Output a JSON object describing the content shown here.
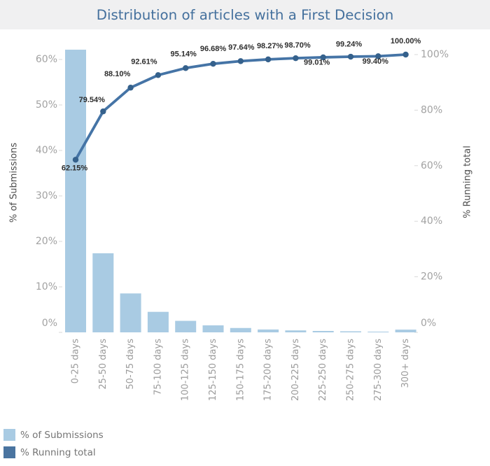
{
  "title": "Distribution of articles with a First Decision",
  "colors": {
    "band": "#f0f0f1",
    "title": "#44709d",
    "bar": "#a9cbe3",
    "line": "#4574a6",
    "marker": "#35618c",
    "legend_dark": "#4a74a0",
    "tick_label": "#a2a2a2",
    "x_label": "#9b9b9b",
    "axis_title": "#4d4d4d",
    "legend_text": "#757575",
    "data_label": "#2e2e2e",
    "tick_mark": "#d9d9d9"
  },
  "chart_data": {
    "type": "bar",
    "subtype": "pareto-combo-bar-line",
    "title": "Distribution of articles with a First Decision",
    "categories": [
      "0-25 days",
      "25-50 days",
      "50-75 days",
      "75-100 days",
      "100-125 days",
      "125-150 days",
      "150-175 days",
      "175-200 days",
      "200-225 days",
      "225-250 days",
      "250-275 days",
      "275-300 days",
      "300+ days"
    ],
    "series": [
      {
        "name": "% of Submissions",
        "type": "bar",
        "axis": "left",
        "values": [
          62.15,
          17.39,
          8.56,
          4.51,
          2.53,
          1.54,
          0.96,
          0.63,
          0.43,
          0.31,
          0.23,
          0.16,
          0.6
        ]
      },
      {
        "name": "% Running total",
        "type": "line",
        "axis": "right",
        "values": [
          62.15,
          79.54,
          88.1,
          92.61,
          95.14,
          96.68,
          97.64,
          98.27,
          98.7,
          99.01,
          99.24,
          99.4,
          100.0
        ],
        "point_labels": [
          "62.15%",
          "79.54%",
          "88.10%",
          "92.61%",
          "95.14%",
          "96.68%",
          "97.64%",
          "98.27%",
          "98.70%",
          "99.01%",
          "99.24%",
          "99.40%",
          "100.00%"
        ],
        "label_side": [
          "below",
          "above",
          "above",
          "above",
          "above",
          "above",
          "above",
          "above",
          "above",
          "below",
          "above",
          "below",
          "above"
        ]
      }
    ],
    "left_axis": {
      "title": "% of Submissions",
      "tick_values": [
        0,
        10,
        20,
        30,
        40,
        50,
        60
      ],
      "tick_labels": [
        "0%",
        "10%",
        "20%",
        "30%",
        "40%",
        "50%",
        "60%"
      ],
      "range": [
        0,
        63.8
      ]
    },
    "right_axis": {
      "title": "% Running total",
      "tick_values": [
        0,
        20,
        40,
        60,
        80,
        100
      ],
      "tick_labels": [
        "0%",
        "20%",
        "40%",
        "60%",
        "80%",
        "100%"
      ],
      "range": [
        0,
        100
      ]
    },
    "grid": false,
    "legend": {
      "position": "bottom-left",
      "items": [
        {
          "label": "% of Submissions",
          "swatch": "bar"
        },
        {
          "label": "% Running total",
          "swatch": "legend_dark"
        }
      ]
    }
  }
}
